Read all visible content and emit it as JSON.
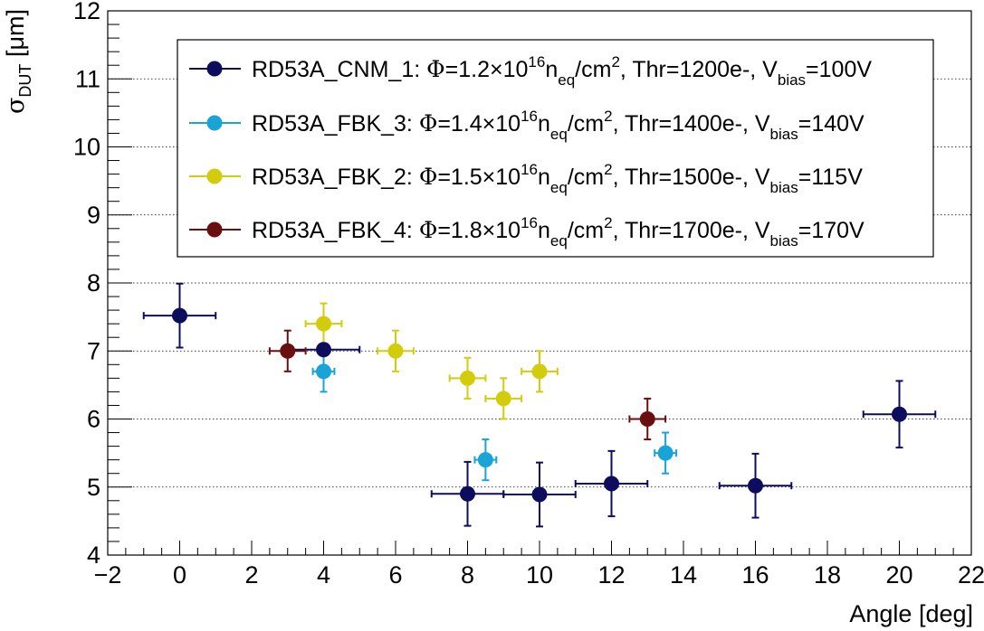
{
  "chart_data": {
    "type": "scatter",
    "xlabel": "Angle [deg]",
    "ylabel": {
      "main": "σ",
      "sub": "DUT",
      "unit": " [μm]"
    },
    "xlim": [
      -2,
      22
    ],
    "ylim": [
      4,
      12
    ],
    "x_ticks": [
      -2,
      0,
      2,
      4,
      6,
      8,
      10,
      12,
      14,
      16,
      18,
      20,
      22
    ],
    "y_ticks": [
      4,
      5,
      6,
      7,
      8,
      9,
      10,
      11,
      12
    ],
    "x_tick_labels": [
      "−2",
      "0",
      "2",
      "4",
      "6",
      "8",
      "10",
      "12",
      "14",
      "16",
      "18",
      "20",
      "22"
    ],
    "y_tick_labels": [
      "4",
      "5",
      "6",
      "7",
      "8",
      "9",
      "10",
      "11",
      "12"
    ],
    "grid": "horizontal dotted",
    "legend_position": "top-right",
    "series": [
      {
        "name": "RD53A_CNM_1",
        "color": "#0d0d5e",
        "legend": {
          "device": "RD53A_CNM_1: ",
          "phi_sym": "Φ",
          "phi": "=1.2×10",
          "phi_exp": "16",
          "n": "n",
          "n_sub": "eq",
          "unit": "/cm",
          "unit_exp": "2",
          "thr": ", Thr=1200e-, V",
          "v_sub": "bias",
          "v": "=100V"
        },
        "points": [
          {
            "x": 0,
            "y": 7.52,
            "xerr": 1,
            "yerr": 0.47
          },
          {
            "x": 4,
            "y": 7.02,
            "xerr": 1,
            "yerr": 0.0
          },
          {
            "x": 8,
            "y": 4.9,
            "xerr": 1,
            "yerr": 0.47
          },
          {
            "x": 10,
            "y": 4.89,
            "xerr": 1,
            "yerr": 0.47
          },
          {
            "x": 12,
            "y": 5.05,
            "xerr": 1,
            "yerr": 0.48
          },
          {
            "x": 16,
            "y": 5.02,
            "xerr": 1,
            "yerr": 0.47
          },
          {
            "x": 20,
            "y": 6.07,
            "xerr": 1,
            "yerr": 0.49
          }
        ]
      },
      {
        "name": "RD53A_FBK_3",
        "color": "#1aa3d6",
        "legend": {
          "device": "RD53A_FBK_3: ",
          "phi_sym": "Φ",
          "phi": "=1.4×10",
          "phi_exp": "16",
          "n": "n",
          "n_sub": "eq",
          "unit": "/cm",
          "unit_exp": "2",
          "thr": ", Thr=1400e-, V",
          "v_sub": "bias",
          "v": "=140V"
        },
        "points": [
          {
            "x": 4,
            "y": 6.7,
            "xerr": 0.3,
            "yerr": 0.3
          },
          {
            "x": 8.5,
            "y": 5.4,
            "xerr": 0.3,
            "yerr": 0.3
          },
          {
            "x": 13.5,
            "y": 5.5,
            "xerr": 0.3,
            "yerr": 0.3
          }
        ]
      },
      {
        "name": "RD53A_FBK_2",
        "color": "#d2cc0d",
        "legend": {
          "device": "RD53A_FBK_2: ",
          "phi_sym": "Φ",
          "phi": "=1.5×10",
          "phi_exp": "16",
          "n": "n",
          "n_sub": "eq",
          "unit": "/cm",
          "unit_exp": "2",
          "thr": ", Thr=1500e-, V",
          "v_sub": "bias",
          "v": "=115V"
        },
        "points": [
          {
            "x": 4,
            "y": 7.4,
            "xerr": 0.5,
            "yerr": 0.3
          },
          {
            "x": 6,
            "y": 7.0,
            "xerr": 0.5,
            "yerr": 0.3
          },
          {
            "x": 8,
            "y": 6.6,
            "xerr": 0.5,
            "yerr": 0.3
          },
          {
            "x": 9,
            "y": 6.3,
            "xerr": 0.5,
            "yerr": 0.3
          },
          {
            "x": 10,
            "y": 6.7,
            "xerr": 0.5,
            "yerr": 0.3
          }
        ]
      },
      {
        "name": "RD53A_FBK_4",
        "color": "#6a0f0f",
        "legend": {
          "device": "RD53A_FBK_4: ",
          "phi_sym": "Φ",
          "phi": "=1.8×10",
          "phi_exp": "16",
          "n": "n",
          "n_sub": "eq",
          "unit": "/cm",
          "unit_exp": "2",
          "thr": ", Thr=1700e-, V",
          "v_sub": "bias",
          "v": "=170V"
        },
        "points": [
          {
            "x": 3,
            "y": 7.0,
            "xerr": 0.5,
            "yerr": 0.3
          },
          {
            "x": 13,
            "y": 6.0,
            "xerr": 0.5,
            "yerr": 0.3
          }
        ]
      }
    ]
  }
}
